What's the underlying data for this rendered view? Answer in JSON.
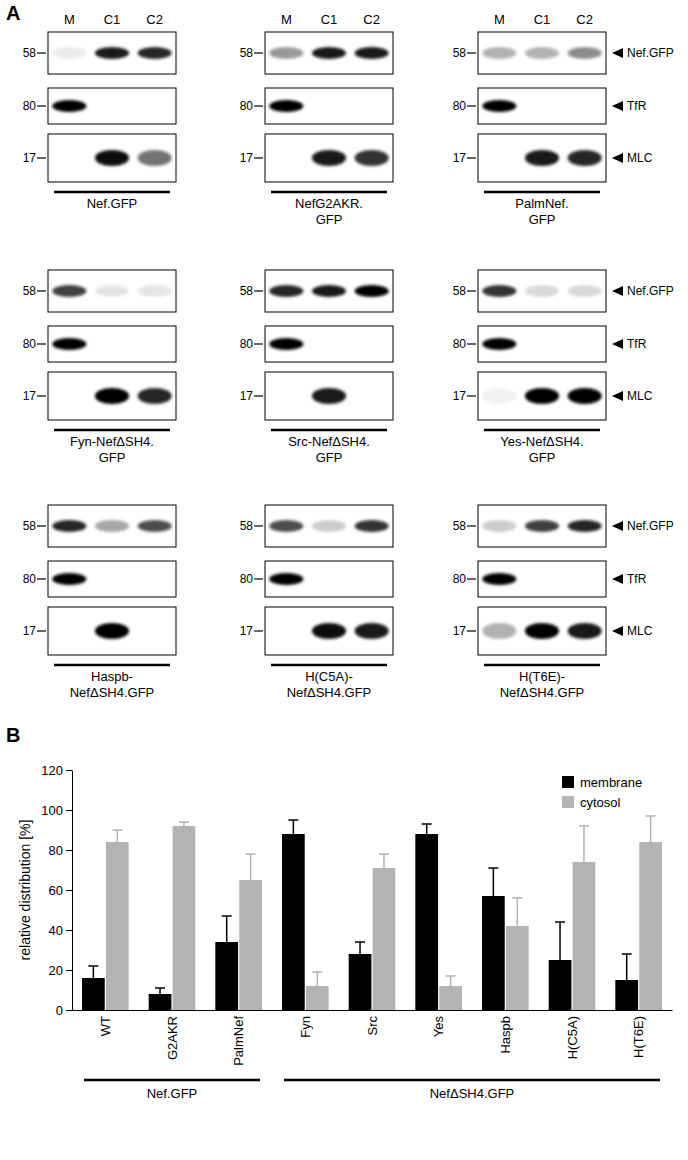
{
  "figure": {
    "panel_labels": [
      "A",
      "B"
    ]
  },
  "blots": {
    "lanes": [
      "M",
      "C1",
      "C2"
    ],
    "rows": [
      {
        "protein": "Nef.GFP",
        "marker": 58
      },
      {
        "protein": "TfR",
        "marker": 80
      },
      {
        "protein": "MLC",
        "marker": 17
      }
    ],
    "panels": [
      {
        "label": [
          "Nef.GFP"
        ],
        "intensity": [
          [
            0.08,
            0.9,
            0.85
          ],
          [
            1,
            0,
            0
          ],
          [
            0,
            0.95,
            0.55
          ]
        ]
      },
      {
        "label": [
          "NefG2AKR.",
          "GFP"
        ],
        "intensity": [
          [
            0.4,
            0.9,
            0.9
          ],
          [
            1,
            0,
            0
          ],
          [
            0,
            0.9,
            0.8
          ]
        ]
      },
      {
        "label": [
          "PalmNef.",
          "GFP"
        ],
        "intensity": [
          [
            0.3,
            0.3,
            0.45
          ],
          [
            1,
            0,
            0
          ],
          [
            0,
            0.9,
            0.85
          ]
        ]
      },
      {
        "label": [
          "Fyn-NefΔSH4.",
          "GFP"
        ],
        "intensity": [
          [
            0.75,
            0.1,
            0.1
          ],
          [
            1,
            0,
            0
          ],
          [
            0,
            1,
            0.85
          ]
        ]
      },
      {
        "label": [
          "Src-NefΔSH4.",
          "GFP"
        ],
        "intensity": [
          [
            0.85,
            0.9,
            1
          ],
          [
            1,
            0,
            0
          ],
          [
            0,
            0.9,
            0
          ]
        ]
      },
      {
        "label": [
          "Yes-NefΔSH4.",
          "GFP"
        ],
        "intensity": [
          [
            0.8,
            0.15,
            0.15
          ],
          [
            1,
            0,
            0
          ],
          [
            0.05,
            1,
            1
          ]
        ]
      },
      {
        "label": [
          "Haspb-",
          "NefΔSH4.GFP"
        ],
        "intensity": [
          [
            0.85,
            0.35,
            0.7
          ],
          [
            1,
            0,
            0
          ],
          [
            0,
            1,
            0
          ]
        ]
      },
      {
        "label": [
          "H(C5A)-",
          "NefΔSH4.GFP"
        ],
        "intensity": [
          [
            0.7,
            0.2,
            0.8
          ],
          [
            1,
            0,
            0
          ],
          [
            0,
            0.95,
            0.9
          ]
        ]
      },
      {
        "label": [
          "H(T6E)-",
          "NefΔSH4.GFP"
        ],
        "intensity": [
          [
            0.2,
            0.75,
            0.85
          ],
          [
            1,
            0,
            0
          ],
          [
            0.3,
            1,
            0.9
          ]
        ]
      }
    ]
  },
  "chart_data": {
    "type": "bar",
    "ylabel": "relative distribution [%]",
    "categories": [
      "WT",
      "G2AKR",
      "PalmNef",
      "Fyn",
      "Src",
      "Yes",
      "Haspb",
      "H(C5A)",
      "H(T6E)"
    ],
    "series": [
      {
        "name": "membrane",
        "color": "#000000",
        "values": [
          16,
          8,
          34,
          88,
          28,
          88,
          57,
          25,
          15
        ],
        "errors": [
          6,
          3,
          13,
          7,
          6,
          5,
          14,
          19,
          13
        ]
      },
      {
        "name": "cytosol",
        "color": "#b3b3b3",
        "values": [
          84,
          92,
          65,
          12,
          71,
          12,
          42,
          74,
          84
        ],
        "errors": [
          6,
          2,
          13,
          7,
          7,
          5,
          14,
          18,
          13
        ]
      }
    ],
    "ylim": [
      0,
      120
    ],
    "yticks": [
      0,
      20,
      40,
      60,
      80,
      100,
      120
    ],
    "legend": "upper right",
    "groups": [
      {
        "name": "Nef.GFP",
        "categories": [
          "WT",
          "G2AKR",
          "PalmNef"
        ]
      },
      {
        "name": "NefΔSH4.GFP",
        "categories": [
          "Fyn",
          "Src",
          "Yes",
          "Haspb",
          "H(C5A)",
          "H(T6E)"
        ]
      }
    ]
  }
}
